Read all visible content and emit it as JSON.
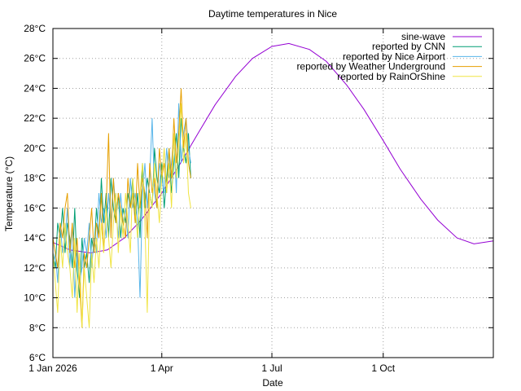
{
  "chart_data": {
    "type": "line",
    "title": "Daytime temperatures in Nice",
    "xlabel": "Date",
    "ylabel": "Temperature (°C)",
    "x_axis": {
      "type": "date",
      "range": [
        "2026-01-01",
        "2026-12-31"
      ],
      "ticks": [
        {
          "date": "2026-01-01",
          "label": "1 Jan 2026"
        },
        {
          "date": "2026-04-01",
          "label": "1 Apr"
        },
        {
          "date": "2026-07-01",
          "label": "1 Jul"
        },
        {
          "date": "2026-10-01",
          "label": "1 Oct"
        }
      ]
    },
    "y_axis": {
      "range": [
        6,
        28
      ],
      "ticks": [
        {
          "value": 6,
          "label": "6°C"
        },
        {
          "value": 8,
          "label": "8°C"
        },
        {
          "value": 10,
          "label": "10°C"
        },
        {
          "value": 12,
          "label": "12°C"
        },
        {
          "value": 14,
          "label": "14°C"
        },
        {
          "value": 16,
          "label": "16°C"
        },
        {
          "value": 18,
          "label": "18°C"
        },
        {
          "value": 20,
          "label": "20°C"
        },
        {
          "value": 22,
          "label": "22°C"
        },
        {
          "value": 24,
          "label": "24°C"
        },
        {
          "value": 26,
          "label": "26°C"
        },
        {
          "value": 28,
          "label": "28°C"
        }
      ]
    },
    "grid": true,
    "legend_position": "top-right",
    "series": [
      {
        "name": "sine-wave",
        "color": "#9400d3",
        "x": [
          "2026-01-01",
          "2026-01-15",
          "2026-02-01",
          "2026-02-15",
          "2026-03-01",
          "2026-03-15",
          "2026-04-01",
          "2026-04-15",
          "2026-05-01",
          "2026-05-15",
          "2026-06-01",
          "2026-06-15",
          "2026-07-01",
          "2026-07-15",
          "2026-08-01",
          "2026-08-15",
          "2026-09-01",
          "2026-09-15",
          "2026-10-01",
          "2026-10-15",
          "2026-11-01",
          "2026-11-15",
          "2026-12-01",
          "2026-12-15",
          "2026-12-31"
        ],
        "values": [
          13.7,
          13.2,
          13.0,
          13.2,
          14.0,
          15.2,
          17.0,
          18.8,
          21.0,
          22.9,
          24.8,
          26.0,
          26.8,
          27.0,
          26.6,
          25.8,
          24.2,
          22.6,
          20.5,
          18.6,
          16.6,
          15.2,
          14.0,
          13.6,
          13.8
        ]
      },
      {
        "name": "reported by CNN",
        "color": "#009e73",
        "x": [
          "2026-01-01",
          "2026-01-03",
          "2026-01-05",
          "2026-01-07",
          "2026-01-09",
          "2026-01-11",
          "2026-01-13",
          "2026-01-15",
          "2026-01-17",
          "2026-01-19",
          "2026-01-21",
          "2026-01-23",
          "2026-01-25",
          "2026-01-27",
          "2026-01-29",
          "2026-01-31",
          "2026-02-02",
          "2026-02-04",
          "2026-02-06",
          "2026-02-08",
          "2026-02-10",
          "2026-02-12",
          "2026-02-14",
          "2026-02-16",
          "2026-02-18",
          "2026-02-20",
          "2026-02-22",
          "2026-02-24",
          "2026-02-26",
          "2026-02-28",
          "2026-03-02",
          "2026-03-04",
          "2026-03-06",
          "2026-03-08",
          "2026-03-10",
          "2026-03-12",
          "2026-03-14",
          "2026-03-16",
          "2026-03-18",
          "2026-03-20",
          "2026-03-22",
          "2026-03-24",
          "2026-03-26",
          "2026-03-28",
          "2026-03-30",
          "2026-04-01",
          "2026-04-03",
          "2026-04-05",
          "2026-04-07",
          "2026-04-09",
          "2026-04-11",
          "2026-04-13",
          "2026-04-15",
          "2026-04-17",
          "2026-04-19",
          "2026-04-21",
          "2026-04-23",
          "2026-04-25"
        ],
        "values": [
          13,
          12,
          15,
          14,
          16,
          13,
          15,
          14,
          12,
          16,
          12,
          10,
          14,
          12,
          13,
          11,
          14,
          13,
          16,
          14,
          18,
          15,
          17,
          14,
          18,
          16,
          15,
          17,
          14,
          16,
          15,
          17,
          16,
          18,
          15,
          17,
          14,
          19,
          16,
          18,
          17,
          16,
          20,
          18,
          17,
          19,
          16,
          18,
          20,
          17,
          19,
          21,
          18,
          22,
          20,
          19,
          21,
          18
        ]
      },
      {
        "name": "reported by Nice Airport",
        "color": "#56b4e9",
        "x": [
          "2026-01-01",
          "2026-01-03",
          "2026-01-05",
          "2026-01-07",
          "2026-01-09",
          "2026-01-11",
          "2026-01-13",
          "2026-01-15",
          "2026-01-17",
          "2026-01-19",
          "2026-01-21",
          "2026-01-23",
          "2026-01-25",
          "2026-01-27",
          "2026-01-29",
          "2026-01-31",
          "2026-02-02",
          "2026-02-04",
          "2026-02-06",
          "2026-02-08",
          "2026-02-10",
          "2026-02-12",
          "2026-02-14",
          "2026-02-16",
          "2026-02-18",
          "2026-02-20",
          "2026-02-22",
          "2026-02-24",
          "2026-02-26",
          "2026-02-28",
          "2026-03-02",
          "2026-03-04",
          "2026-03-06",
          "2026-03-08",
          "2026-03-10",
          "2026-03-12",
          "2026-03-14",
          "2026-03-16",
          "2026-03-18",
          "2026-03-20",
          "2026-03-22",
          "2026-03-24",
          "2026-03-26",
          "2026-03-28",
          "2026-03-30",
          "2026-04-01",
          "2026-04-03",
          "2026-04-05",
          "2026-04-07",
          "2026-04-09",
          "2026-04-11",
          "2026-04-13",
          "2026-04-15",
          "2026-04-17",
          "2026-04-19",
          "2026-04-21",
          "2026-04-23",
          "2026-04-25"
        ],
        "values": [
          12,
          13,
          11,
          15,
          13,
          14,
          16,
          12,
          15,
          10,
          13,
          11,
          12,
          14,
          13,
          15,
          12,
          14,
          13,
          17,
          15,
          16,
          14,
          17,
          15,
          18,
          16,
          14,
          17,
          15,
          16,
          14,
          18,
          16,
          17,
          15,
          10,
          17,
          19,
          16,
          18,
          22,
          17,
          16,
          19,
          18,
          17,
          20,
          18,
          19,
          21,
          17,
          23,
          19,
          21,
          22,
          20,
          19
        ]
      },
      {
        "name": "reported by Weather Underground",
        "color": "#e69f00",
        "x": [
          "2026-01-01",
          "2026-01-03",
          "2026-01-05",
          "2026-01-07",
          "2026-01-09",
          "2026-01-11",
          "2026-01-13",
          "2026-01-15",
          "2026-01-17",
          "2026-01-19",
          "2026-01-21",
          "2026-01-23",
          "2026-01-25",
          "2026-01-27",
          "2026-01-29",
          "2026-01-31",
          "2026-02-02",
          "2026-02-04",
          "2026-02-06",
          "2026-02-08",
          "2026-02-10",
          "2026-02-12",
          "2026-02-14",
          "2026-02-16",
          "2026-02-18",
          "2026-02-20",
          "2026-02-22",
          "2026-02-24",
          "2026-02-26",
          "2026-02-28",
          "2026-03-02",
          "2026-03-04",
          "2026-03-06",
          "2026-03-08",
          "2026-03-10",
          "2026-03-12",
          "2026-03-14",
          "2026-03-16",
          "2026-03-18",
          "2026-03-20",
          "2026-03-22",
          "2026-03-24",
          "2026-03-26",
          "2026-03-28",
          "2026-03-30",
          "2026-04-01",
          "2026-04-03",
          "2026-04-05",
          "2026-04-07",
          "2026-04-09",
          "2026-04-11",
          "2026-04-13",
          "2026-04-15",
          "2026-04-17",
          "2026-04-19",
          "2026-04-21",
          "2026-04-23",
          "2026-04-25"
        ],
        "values": [
          14,
          13,
          12,
          15,
          14,
          16,
          17,
          13,
          15,
          12,
          14,
          11,
          8,
          13,
          12,
          14,
          16,
          13,
          15,
          14,
          17,
          13,
          16,
          21,
          14,
          18,
          15,
          17,
          16,
          15,
          14,
          18,
          16,
          17,
          15,
          19,
          16,
          18,
          17,
          14,
          19,
          17,
          18,
          16,
          20,
          18,
          19,
          17,
          20,
          18,
          22,
          19,
          21,
          24,
          20,
          22,
          19,
          18
        ]
      },
      {
        "name": "reported by RainOrShine",
        "color": "#f0e442",
        "x": [
          "2026-01-01",
          "2026-01-03",
          "2026-01-05",
          "2026-01-07",
          "2026-01-09",
          "2026-01-11",
          "2026-01-13",
          "2026-01-15",
          "2026-01-17",
          "2026-01-19",
          "2026-01-21",
          "2026-01-23",
          "2026-01-25",
          "2026-01-27",
          "2026-01-29",
          "2026-01-31",
          "2026-02-02",
          "2026-02-04",
          "2026-02-06",
          "2026-02-08",
          "2026-02-10",
          "2026-02-12",
          "2026-02-14",
          "2026-02-16",
          "2026-02-18",
          "2026-02-20",
          "2026-02-22",
          "2026-02-24",
          "2026-02-26",
          "2026-02-28",
          "2026-03-02",
          "2026-03-04",
          "2026-03-06",
          "2026-03-08",
          "2026-03-10",
          "2026-03-12",
          "2026-03-14",
          "2026-03-16",
          "2026-03-18",
          "2026-03-20",
          "2026-03-22",
          "2026-03-24",
          "2026-03-26",
          "2026-03-28",
          "2026-03-30",
          "2026-04-01",
          "2026-04-03",
          "2026-04-05",
          "2026-04-07",
          "2026-04-09",
          "2026-04-11",
          "2026-04-13",
          "2026-04-15",
          "2026-04-17",
          "2026-04-19",
          "2026-04-21",
          "2026-04-23",
          "2026-04-25"
        ],
        "values": [
          13,
          11,
          9,
          14,
          12,
          15,
          13,
          12,
          10,
          14,
          9,
          13,
          8,
          12,
          10,
          8,
          13,
          11,
          14,
          12,
          15,
          13,
          16,
          14,
          12,
          15,
          17,
          13,
          16,
          14,
          17,
          15,
          13,
          18,
          16,
          14,
          17,
          19,
          15,
          9,
          17,
          16,
          19,
          17,
          15,
          18,
          20,
          17,
          19,
          16,
          21,
          18,
          20,
          23,
          19,
          21,
          17,
          16
        ]
      }
    ]
  }
}
